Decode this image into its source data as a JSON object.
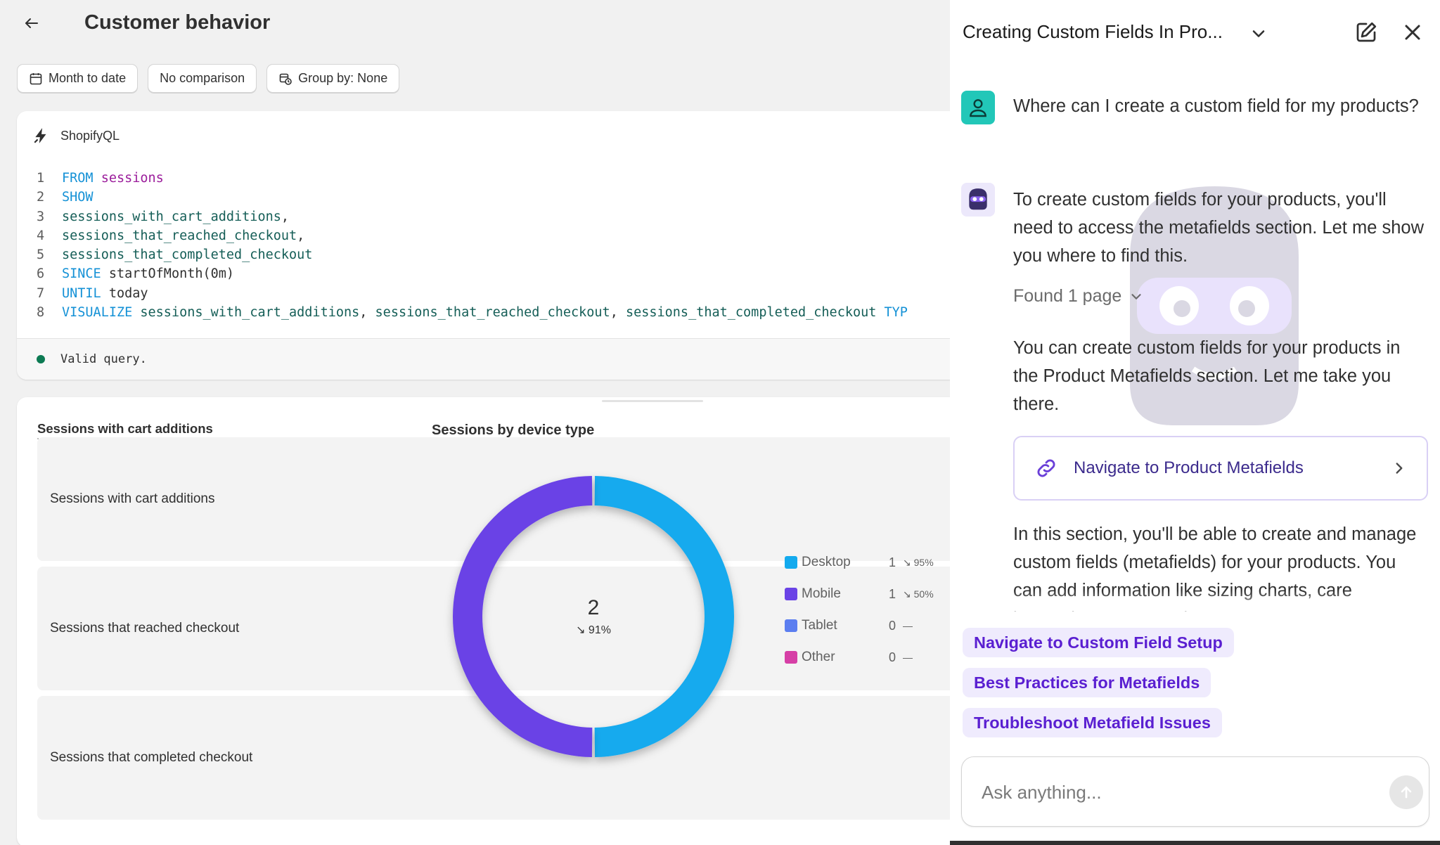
{
  "header": {
    "title": "Customer behavior"
  },
  "filters": {
    "date": "Month to date",
    "comparison": "No comparison",
    "group_by": "Group by: None"
  },
  "query": {
    "label": "ShopifyQL",
    "lines": [
      {
        "num": "1",
        "tokens": [
          [
            "kw",
            "FROM"
          ],
          [
            "plain",
            " "
          ],
          [
            "tbl",
            "sessions"
          ]
        ]
      },
      {
        "num": "2",
        "tokens": [
          [
            "kw",
            "SHOW"
          ]
        ]
      },
      {
        "num": "3",
        "tokens": [
          [
            "fld",
            "sessions_with_cart_additions"
          ],
          [
            "plain",
            ","
          ]
        ]
      },
      {
        "num": "4",
        "tokens": [
          [
            "fld",
            "sessions_that_reached_checkout"
          ],
          [
            "plain",
            ","
          ]
        ]
      },
      {
        "num": "5",
        "tokens": [
          [
            "fld",
            "sessions_that_completed_checkout"
          ]
        ]
      },
      {
        "num": "6",
        "tokens": [
          [
            "kw",
            "SINCE"
          ],
          [
            "plain",
            " startOfMonth(0m)"
          ]
        ]
      },
      {
        "num": "7",
        "tokens": [
          [
            "kw",
            "UNTIL"
          ],
          [
            "plain",
            " today"
          ]
        ]
      },
      {
        "num": "8",
        "tokens": [
          [
            "kw",
            "VISUALIZE"
          ],
          [
            "plain",
            " "
          ],
          [
            "fld",
            "sessions_with_cart_additions"
          ],
          [
            "plain",
            ", "
          ],
          [
            "fld",
            "sessions_that_reached_checkout"
          ],
          [
            "plain",
            ", "
          ],
          [
            "fld",
            "sessions_that_completed_checkout"
          ],
          [
            "plain",
            " "
          ],
          [
            "kw",
            "TYP"
          ]
        ]
      }
    ],
    "status": "Valid query."
  },
  "viz": {
    "left_title": "Sessions with cart additions",
    "right_title": "Sessions by device type",
    "metrics": [
      "Sessions with cart additions",
      "Sessions that reached checkout",
      "Sessions that completed checkout"
    ]
  },
  "chart_data": {
    "type": "pie",
    "title": "Sessions by device type",
    "center_value": "2",
    "center_change": "↘ 91%",
    "series": [
      {
        "name": "Desktop",
        "value": 1,
        "change": "↘ 95%",
        "color": "#13aaee"
      },
      {
        "name": "Mobile",
        "value": 1,
        "change": "↘ 50%",
        "color": "#6a43e6"
      },
      {
        "name": "Tablet",
        "value": 0,
        "change": "—",
        "color": "#5b7ef0"
      },
      {
        "name": "Other",
        "value": 0,
        "change": "—",
        "color": "#d63fa6"
      }
    ]
  },
  "chat": {
    "title": "Creating Custom Fields In Pro...",
    "user_message": "Where can I create a custom field for my products?",
    "bot_intro": "To create custom fields for your products, you'll need to access the metafields section. Let me show you where to find this.",
    "found_pages": "Found 1 page",
    "bot_followup": "You can create custom fields for your products in the Product Metafields section. Let me take you there.",
    "nav_card_label": "Navigate to Product Metafields",
    "bot_section": "In this section, you'll be able to create and manage custom fields (metafields) for your products. You can add information like sizing charts, care instructions, or any other custom",
    "suggestions": [
      "Navigate to Custom Field Setup",
      "Best Practices for Metafields",
      "Troubleshoot Metafield Issues"
    ],
    "input_placeholder": "Ask anything..."
  },
  "colors": {
    "accent": "#5a1fd1",
    "ok": "#0c7a53",
    "user_avatar": "#22c7b8"
  }
}
